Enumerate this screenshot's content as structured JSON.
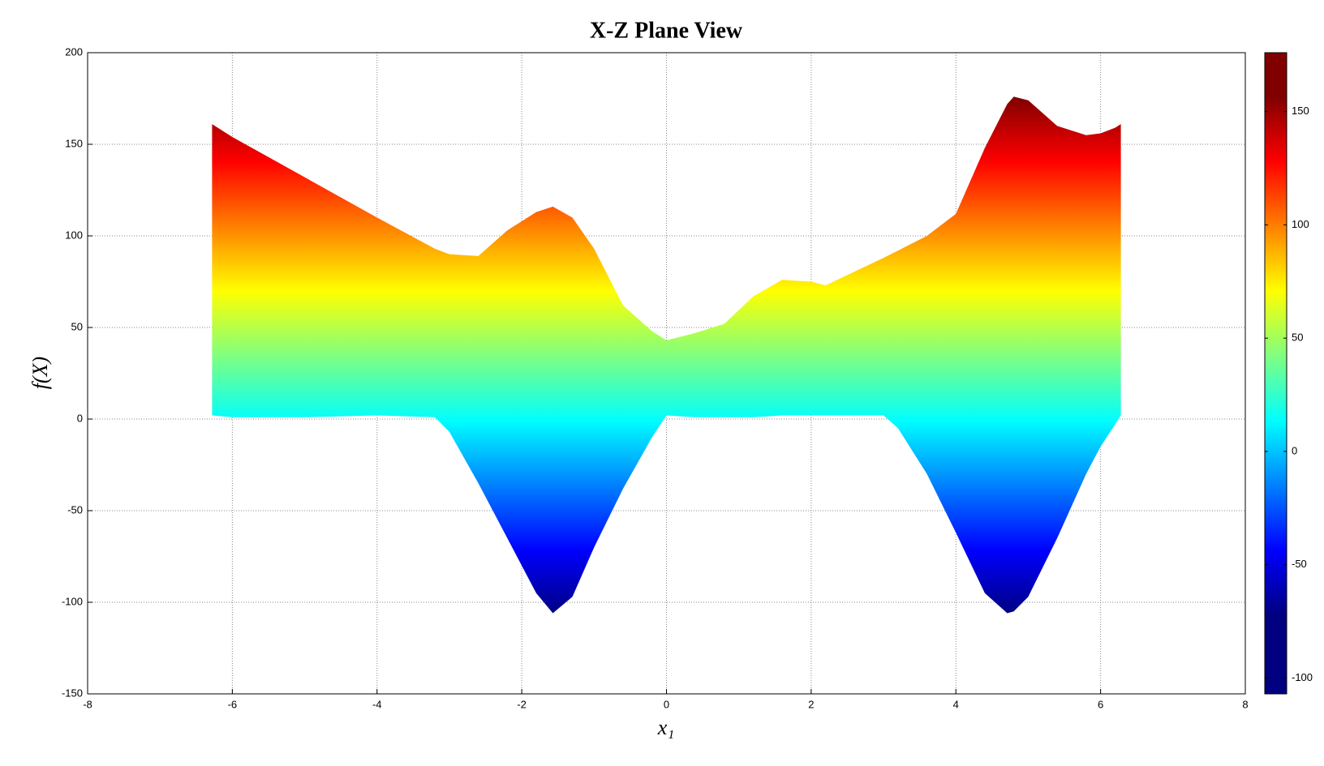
{
  "chart_data": {
    "type": "band",
    "title": "X-Z Plane View",
    "x_label": "x₁",
    "y_label": "f(X)",
    "x": [
      -6.28,
      -6,
      -5,
      -4,
      -3.2,
      -3,
      -2.6,
      -2.2,
      -1.8,
      -1.57,
      -1.3,
      -1,
      -0.6,
      -0.2,
      0,
      0.4,
      0.8,
      1.2,
      1.6,
      2,
      2.2,
      3,
      3.2,
      3.6,
      4,
      4.4,
      4.71,
      4.8,
      5,
      5.4,
      5.8,
      6,
      6.2,
      6.28
    ],
    "upper": [
      161,
      154,
      132,
      110,
      93,
      90,
      89,
      103,
      113,
      116,
      110,
      93,
      62,
      48,
      43,
      47,
      52,
      67,
      76,
      75,
      73,
      88,
      92,
      100,
      112,
      148,
      172,
      176,
      174,
      160,
      155,
      156,
      159,
      161
    ],
    "lower": [
      2,
      1,
      1,
      2,
      1,
      -7,
      -35,
      -65,
      -95,
      -106,
      -97,
      -70,
      -38,
      -10,
      2,
      1,
      1,
      1,
      2,
      2,
      2,
      2,
      -5,
      -30,
      -62,
      -95,
      -106,
      -105,
      -97,
      -65,
      -30,
      -15,
      -3,
      2
    ],
    "xlim": [
      -8,
      8
    ],
    "ylim": [
      -150,
      200
    ],
    "xticks": [
      -8,
      -6,
      -4,
      -2,
      0,
      2,
      4,
      6,
      8
    ],
    "yticks": [
      -150,
      -100,
      -50,
      0,
      50,
      100,
      150,
      200
    ],
    "grid": true,
    "colormap": "jet",
    "clim": [
      -107,
      176
    ],
    "cticks": [
      -100,
      -50,
      0,
      50,
      100,
      150
    ]
  }
}
